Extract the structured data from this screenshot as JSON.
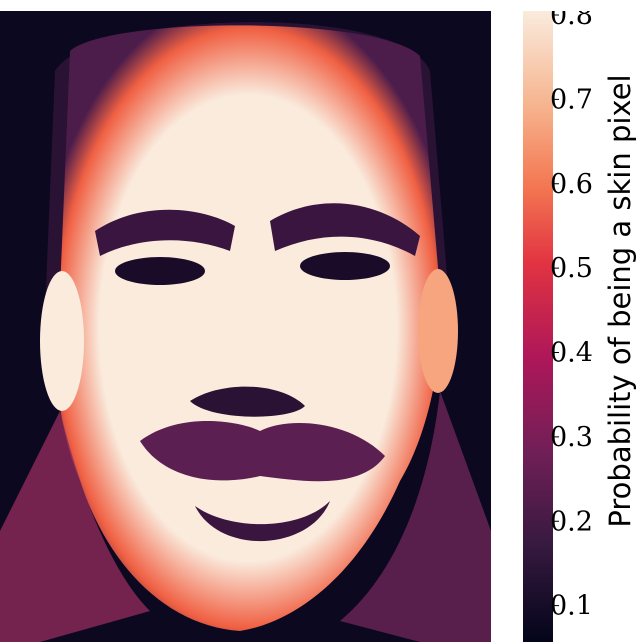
{
  "chart_data": {
    "type": "heatmap",
    "title": "",
    "colormap": "rocket",
    "colorbar": {
      "label": "Probability of being a skin pixel",
      "vmin": 0.0,
      "vmax": 0.8,
      "ticks": [
        0.1,
        0.2,
        0.3,
        0.4,
        0.5,
        0.6,
        0.7,
        0.8
      ],
      "tick_labels": [
        "0.1",
        "0.2",
        "0.3",
        "0.4",
        "0.5",
        "0.6",
        "0.7",
        "0.8"
      ]
    },
    "image_description_values": {
      "background": 0.0,
      "face_skin": 0.8,
      "hair_and_eyes": 0.05,
      "mustache": 0.15,
      "face_edges": 0.55
    }
  }
}
